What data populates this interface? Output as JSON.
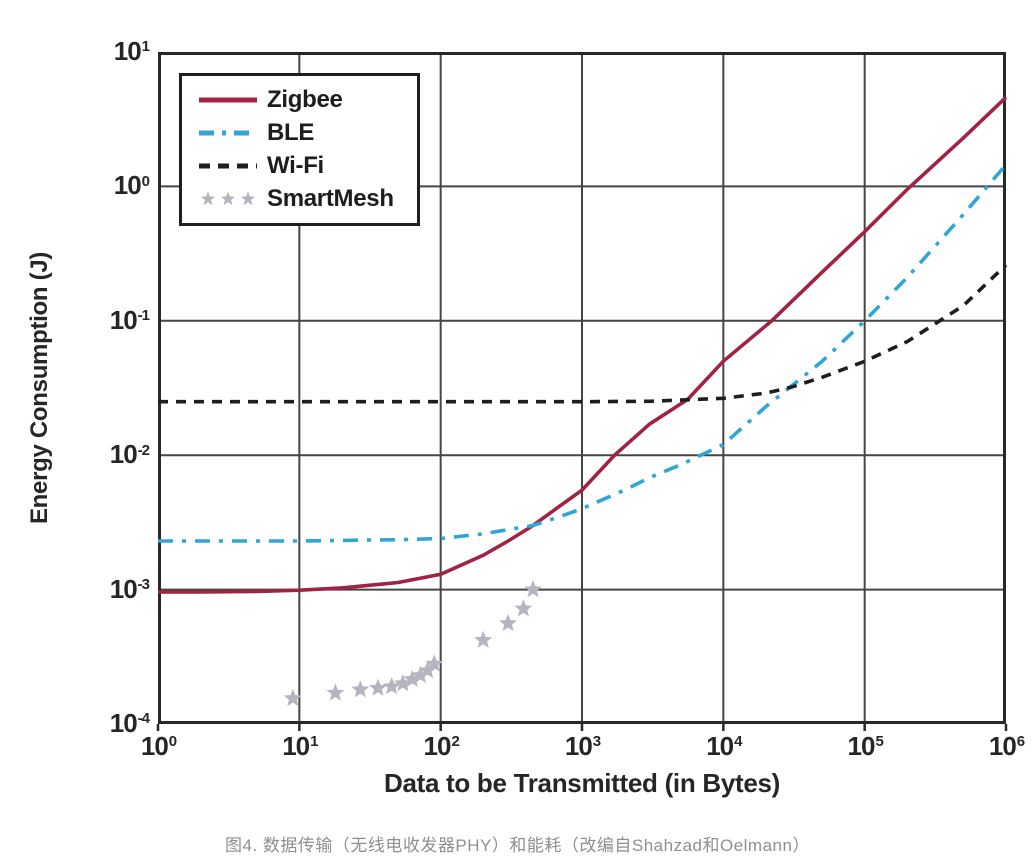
{
  "page": {
    "background": "#ffffff",
    "caption": "图4. 数据传输（无线电收发器PHY）和能耗（改编自Shahzad和Oelmann）",
    "caption_color": "#8f8f8f"
  },
  "chart_data": {
    "type": "line",
    "title": "",
    "xlabel": "Data to be Transmitted (in Bytes)",
    "ylabel": "Energy Consumption (J)",
    "x_scale": "log",
    "y_scale": "log",
    "xlim": [
      1,
      1000000
    ],
    "ylim": [
      0.0001,
      10
    ],
    "x_tick_exponents": [
      0,
      1,
      2,
      3,
      4,
      5,
      6
    ],
    "y_tick_exponents": [
      1,
      0,
      -1,
      -2,
      -3,
      -4
    ],
    "grid": true,
    "legend_position": "top-left",
    "axis_color": "#282828",
    "grid_color": "#454545",
    "text_color": "#262626",
    "series": [
      {
        "name": "Zigbee",
        "style": "solid",
        "color": "#a02343",
        "points": [
          [
            1,
            0.00096
          ],
          [
            2,
            0.00096
          ],
          [
            5,
            0.00097
          ],
          [
            10,
            0.00099
          ],
          [
            20,
            0.00103
          ],
          [
            50,
            0.00113
          ],
          [
            100,
            0.0013
          ],
          [
            200,
            0.0018
          ],
          [
            300,
            0.0023
          ],
          [
            450,
            0.003
          ],
          [
            700,
            0.0042
          ],
          [
            1000,
            0.0055
          ],
          [
            1700,
            0.01
          ],
          [
            3000,
            0.017
          ],
          [
            5600,
            0.026
          ],
          [
            10000,
            0.05
          ],
          [
            22000,
            0.1
          ],
          [
            50000,
            0.23
          ],
          [
            100000,
            0.46
          ],
          [
            200000,
            0.95
          ],
          [
            500000,
            2.3
          ],
          [
            1000000,
            4.6
          ]
        ]
      },
      {
        "name": "BLE",
        "style": "dash-dot",
        "color": "#31a5d6",
        "points": [
          [
            1,
            0.0023
          ],
          [
            10,
            0.0023
          ],
          [
            50,
            0.00235
          ],
          [
            100,
            0.0024
          ],
          [
            200,
            0.0026
          ],
          [
            450,
            0.003
          ],
          [
            700,
            0.0035
          ],
          [
            1000,
            0.004
          ],
          [
            2000,
            0.0055
          ],
          [
            3000,
            0.0068
          ],
          [
            5000,
            0.0085
          ],
          [
            10000,
            0.012
          ],
          [
            20000,
            0.023
          ],
          [
            50000,
            0.05
          ],
          [
            100000,
            0.1
          ],
          [
            200000,
            0.21
          ],
          [
            500000,
            0.62
          ],
          [
            1000000,
            1.45
          ]
        ]
      },
      {
        "name": "Wi-Fi",
        "style": "dashed",
        "color": "#1e1e1e",
        "points": [
          [
            1,
            0.025
          ],
          [
            10,
            0.025
          ],
          [
            100,
            0.025
          ],
          [
            1000,
            0.025
          ],
          [
            3000,
            0.0252
          ],
          [
            10000,
            0.0265
          ],
          [
            20000,
            0.029
          ],
          [
            30000,
            0.032
          ],
          [
            50000,
            0.038
          ],
          [
            100000,
            0.05
          ],
          [
            200000,
            0.07
          ],
          [
            300000,
            0.092
          ],
          [
            500000,
            0.13
          ],
          [
            1000000,
            0.26
          ]
        ]
      },
      {
        "name": "SmartMesh",
        "style": "stars",
        "color": "#b6b5bf",
        "points": [
          [
            9,
            0.000155
          ],
          [
            18,
            0.00017
          ],
          [
            27,
            0.00018
          ],
          [
            36,
            0.000185
          ],
          [
            45,
            0.00019
          ],
          [
            54,
            0.0002
          ],
          [
            63,
            0.000215
          ],
          [
            72,
            0.00023
          ],
          [
            81,
            0.00025
          ],
          [
            90,
            0.00028
          ],
          [
            200,
            0.00042
          ],
          [
            300,
            0.00056
          ],
          [
            385,
            0.00072
          ],
          [
            450,
            0.001
          ]
        ]
      }
    ]
  }
}
